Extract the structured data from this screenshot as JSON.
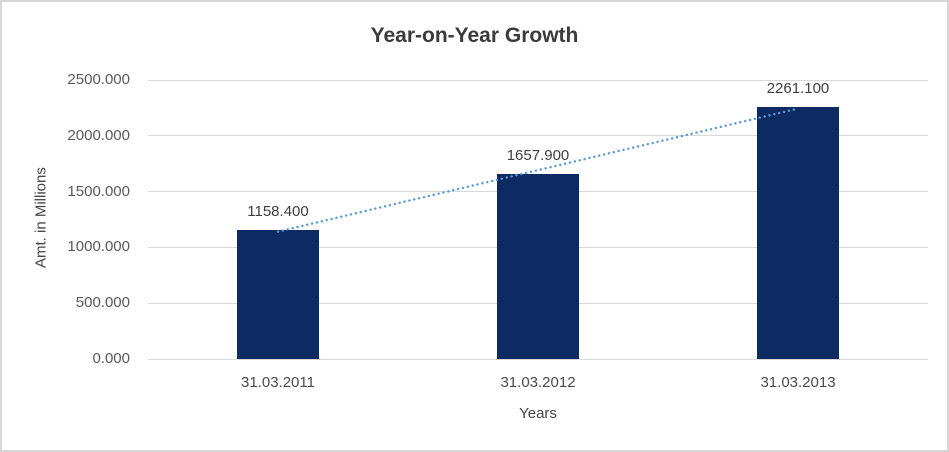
{
  "chart_data": {
    "type": "bar",
    "title": "Year-on-Year Growth",
    "xlabel": "Years",
    "ylabel": "Amt. in Millions",
    "categories": [
      "31.03.2011",
      "31.03.2012",
      "31.03.2013"
    ],
    "values": [
      1158.4,
      1657.9,
      2261.1
    ],
    "value_labels": [
      "1158.400",
      "1657.900",
      "2261.100"
    ],
    "ylim": [
      0,
      2500
    ],
    "y_tick_values": [
      2500,
      2000,
      1500,
      1000,
      500,
      0
    ],
    "y_tick_labels": [
      "2500.000",
      "2000.000",
      "1500.000",
      "1000.000",
      "500.000",
      "0.000"
    ],
    "grid": true,
    "legend_position": "none",
    "bar_color": "#0d2a63",
    "trendline": {
      "type": "linear",
      "style": "dotted",
      "color": "#5b9bd5"
    },
    "gridline_color": "#d9d9d9",
    "title_color": "#3b3b3b",
    "tick_color": "#595959",
    "data_label_color": "#3f3f3f"
  }
}
